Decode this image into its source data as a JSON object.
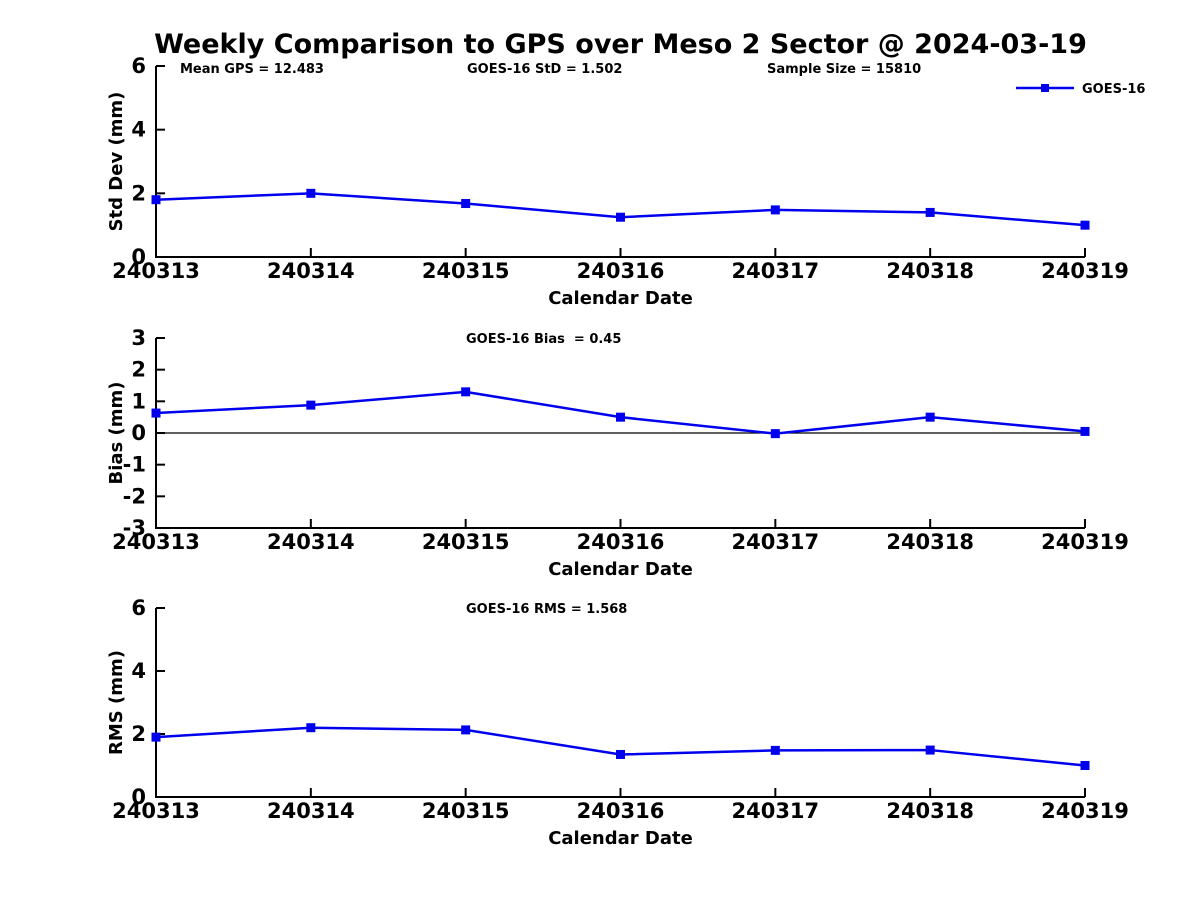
{
  "title": "Weekly Comparison to GPS over Meso 2 Sector @ 2024-03-19",
  "annotations": {
    "mean_gps": "Mean GPS = 12.483",
    "goes16_std": "GOES-16 StD = 1.502",
    "sample_size": "Sample Size = 15810"
  },
  "legend": {
    "label": "GOES-16",
    "position": "top-right"
  },
  "colors": {
    "series": "#0000EE",
    "axis": "#000000",
    "zero_line": "#000000",
    "background": "#FFFFFF",
    "text": "#000000"
  },
  "chart_data": [
    {
      "type": "line",
      "title": "",
      "xlabel": "Calendar Date",
      "ylabel": "Std Dev (mm)",
      "categories": [
        "240313",
        "240314",
        "240315",
        "240316",
        "240317",
        "240318",
        "240319"
      ],
      "yticks": [
        0,
        2,
        4,
        6
      ],
      "ylim": [
        0,
        6
      ],
      "grid": false,
      "zero_line": false,
      "series": [
        {
          "name": "GOES-16",
          "marker": "square",
          "values": [
            1.8,
            2.0,
            1.68,
            1.25,
            1.48,
            1.4,
            1.0
          ]
        }
      ]
    },
    {
      "type": "line",
      "title": "GOES-16 Bias  = 0.45",
      "xlabel": "Calendar Date",
      "ylabel": "Bias (mm)",
      "categories": [
        "240313",
        "240314",
        "240315",
        "240316",
        "240317",
        "240318",
        "240319"
      ],
      "yticks": [
        -3,
        -2,
        -1,
        0,
        1,
        2,
        3
      ],
      "ylim": [
        -3,
        3
      ],
      "grid": false,
      "zero_line": true,
      "series": [
        {
          "name": "GOES-16",
          "marker": "square",
          "values": [
            0.63,
            0.88,
            1.3,
            0.5,
            -0.02,
            0.5,
            0.05
          ]
        }
      ]
    },
    {
      "type": "line",
      "title": "GOES-16 RMS = 1.568",
      "xlabel": "Calendar Date",
      "ylabel": "RMS (mm)",
      "categories": [
        "240313",
        "240314",
        "240315",
        "240316",
        "240317",
        "240318",
        "240319"
      ],
      "yticks": [
        0,
        2,
        4,
        6
      ],
      "ylim": [
        0,
        6
      ],
      "grid": false,
      "zero_line": false,
      "series": [
        {
          "name": "GOES-16",
          "marker": "square",
          "values": [
            1.9,
            2.2,
            2.13,
            1.35,
            1.48,
            1.49,
            1.0
          ]
        }
      ]
    }
  ]
}
